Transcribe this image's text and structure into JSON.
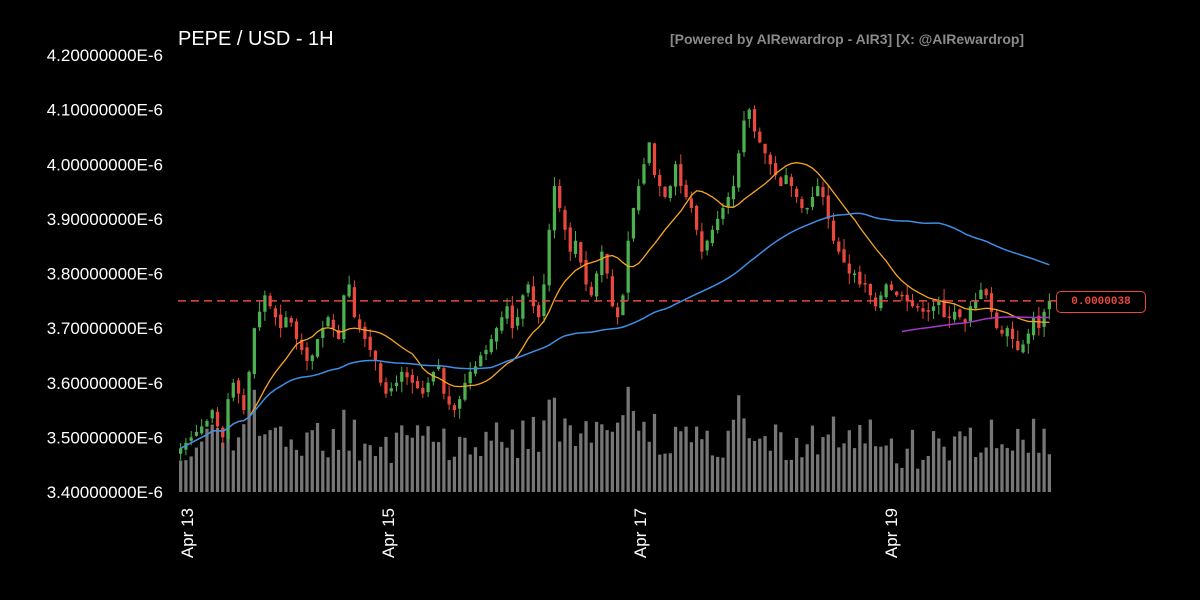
{
  "header": {
    "title": "PEPE / USD - 1H",
    "credit": "[Powered by AIRewardrop - AIR3] [X: @AIRewardrop]"
  },
  "price_label": "0.0000038",
  "colors": {
    "background": "#000000",
    "up": "#4caf50",
    "down": "#e8483e",
    "volume": "#9e9e9e",
    "ma_fast": "#f5a623",
    "ma_slow": "#3d8fe6",
    "ma_other": "#a637c8",
    "price_line": "#e8483e"
  },
  "chart_data": {
    "type": "candlestick",
    "title": "PEPE / USD - 1H",
    "ylim": [
      3.4e-06,
      4.2e-06
    ],
    "y_ticks": [
      "3.40000000E-6",
      "3.50000000E-6",
      "3.60000000E-6",
      "3.70000000E-6",
      "3.80000000E-6",
      "3.90000000E-6",
      "4.00000000E-6",
      "4.10000000E-6",
      "4.20000000E-6"
    ],
    "x_ticks": [
      "Apr 13",
      "Apr 15",
      "Apr 17",
      "Apr 19"
    ],
    "current_price": 3.75e-06,
    "closes": [
      3.48,
      3.49,
      3.5,
      3.51,
      3.52,
      3.53,
      3.55,
      3.52,
      3.5,
      3.57,
      3.6,
      3.58,
      3.55,
      3.62,
      3.7,
      3.73,
      3.76,
      3.74,
      3.72,
      3.7,
      3.72,
      3.71,
      3.68,
      3.66,
      3.64,
      3.65,
      3.68,
      3.7,
      3.72,
      3.7,
      3.68,
      3.76,
      3.78,
      3.72,
      3.7,
      3.68,
      3.66,
      3.64,
      3.6,
      3.58,
      3.59,
      3.6,
      3.62,
      3.61,
      3.6,
      3.59,
      3.58,
      3.6,
      3.62,
      3.63,
      3.58,
      3.56,
      3.55,
      3.57,
      3.6,
      3.62,
      3.63,
      3.65,
      3.66,
      3.68,
      3.7,
      3.72,
      3.74,
      3.7,
      3.72,
      3.76,
      3.78,
      3.74,
      3.72,
      3.78,
      3.88,
      3.96,
      3.92,
      3.88,
      3.84,
      3.86,
      3.82,
      3.78,
      3.76,
      3.8,
      3.84,
      3.8,
      3.74,
      3.72,
      3.76,
      3.86,
      3.92,
      3.96,
      4.0,
      4.04,
      3.98,
      3.96,
      3.94,
      3.96,
      4.0,
      3.96,
      3.94,
      3.92,
      3.88,
      3.84,
      3.86,
      3.88,
      3.9,
      3.92,
      3.94,
      3.96,
      4.02,
      4.08,
      4.1,
      4.06,
      4.04,
      4.02,
      4.0,
      3.98,
      3.96,
      3.98,
      3.96,
      3.94,
      3.92,
      3.92,
      3.94,
      3.96,
      3.94,
      3.9,
      3.86,
      3.84,
      3.82,
      3.8,
      3.8,
      3.78,
      3.78,
      3.76,
      3.74,
      3.76,
      3.78,
      3.77,
      3.76,
      3.76,
      3.75,
      3.74,
      3.74,
      3.73,
      3.73,
      3.74,
      3.75,
      3.72,
      3.72,
      3.73,
      3.72,
      3.71,
      3.74,
      3.75,
      3.77,
      3.76,
      3.73,
      3.7,
      3.69,
      3.7,
      3.68,
      3.66,
      3.67,
      3.69,
      3.72,
      3.7,
      3.73,
      3.75
    ]
  }
}
